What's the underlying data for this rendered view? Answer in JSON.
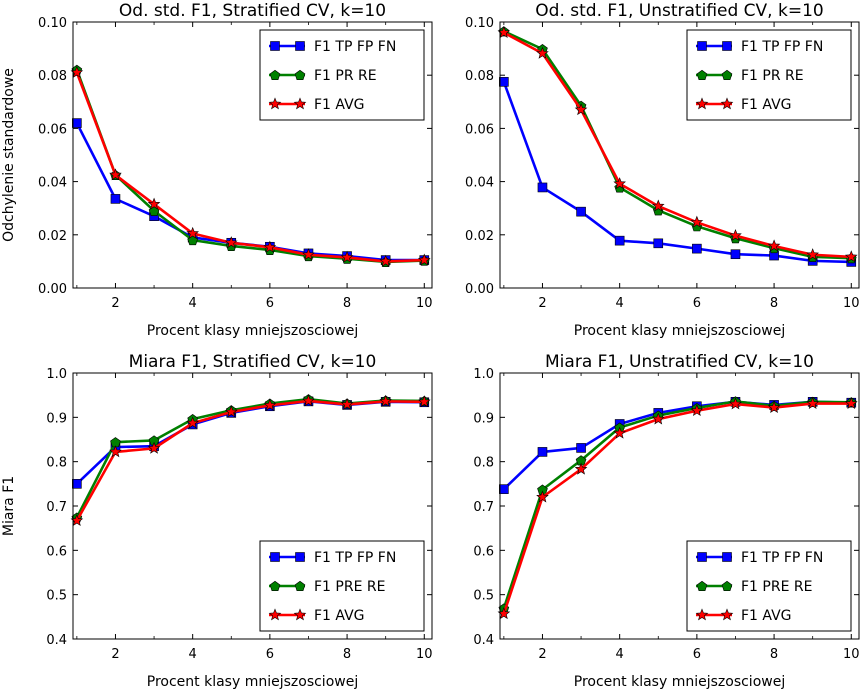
{
  "chart_data": [
    {
      "type": "line",
      "title": "Od. std. F1, Stratified CV, k=10",
      "xlabel": "Procent klasy mniejszosciowej",
      "ylabel": "Odchylenie standardowe",
      "xlim": [
        0.9,
        10.2
      ],
      "ylim": [
        0,
        0.1
      ],
      "xticks": [
        2,
        4,
        6,
        8,
        10
      ],
      "yticks": [
        0,
        0.02,
        0.04,
        0.06,
        0.08,
        0.1
      ],
      "ytick_labels": [
        "0.00",
        "0.02",
        "0.04",
        "0.06",
        "0.08",
        "0.10"
      ],
      "legend_position": "top-right",
      "x": [
        1,
        2,
        3,
        4,
        5,
        6,
        7,
        8,
        9,
        10
      ],
      "series": [
        {
          "name": "F1 TP FP FN",
          "color": "#0000ff",
          "marker": "square",
          "values": [
            0.062,
            0.0335,
            0.027,
            0.019,
            0.017,
            0.0155,
            0.013,
            0.012,
            0.0105,
            0.0105
          ]
        },
        {
          "name": "F1 PR RE",
          "color": "#008000",
          "marker": "pentagon",
          "values": [
            0.082,
            0.0425,
            0.029,
            0.018,
            0.0158,
            0.0143,
            0.012,
            0.011,
            0.0098,
            0.0103
          ]
        },
        {
          "name": "F1 AVG",
          "color": "#ff0000",
          "marker": "star",
          "values": [
            0.081,
            0.0425,
            0.0315,
            0.0205,
            0.017,
            0.0153,
            0.0125,
            0.0115,
            0.01,
            0.0105
          ]
        }
      ]
    },
    {
      "type": "line",
      "title": "Od. std. F1, Unstratified CV, k=10",
      "xlabel": "Procent klasy mniejszosciowej",
      "ylabel": "",
      "xlim": [
        0.9,
        10.2
      ],
      "ylim": [
        0,
        0.1
      ],
      "xticks": [
        2,
        4,
        6,
        8,
        10
      ],
      "yticks": [
        0,
        0.02,
        0.04,
        0.06,
        0.08,
        0.1
      ],
      "ytick_labels": [
        "0.00",
        "0.02",
        "0.04",
        "0.06",
        "0.08",
        "0.10"
      ],
      "legend_position": "top-right",
      "x": [
        1,
        2,
        3,
        4,
        5,
        6,
        7,
        8,
        9,
        10
      ],
      "series": [
        {
          "name": "F1 TP FP FN",
          "color": "#0000ff",
          "marker": "square",
          "values": [
            0.0775,
            0.0378,
            0.0287,
            0.0178,
            0.0168,
            0.0148,
            0.0127,
            0.0122,
            0.0102,
            0.0098
          ]
        },
        {
          "name": "F1 PR RE",
          "color": "#008000",
          "marker": "pentagon",
          "values": [
            0.0965,
            0.0898,
            0.0685,
            0.0378,
            0.0292,
            0.0232,
            0.0187,
            0.015,
            0.0117,
            0.0112
          ]
        },
        {
          "name": "F1 AVG",
          "color": "#ff0000",
          "marker": "star",
          "values": [
            0.096,
            0.0882,
            0.067,
            0.0392,
            0.0308,
            0.0247,
            0.0197,
            0.0158,
            0.0125,
            0.0117
          ]
        }
      ]
    },
    {
      "type": "line",
      "title": "Miara F1, Stratified CV, k=10",
      "xlabel": "Procent klasy mniejszosciowej",
      "ylabel": "Miara F1",
      "xlim": [
        0.9,
        10.2
      ],
      "ylim": [
        0.4,
        1.0
      ],
      "xticks": [
        2,
        4,
        6,
        8,
        10
      ],
      "yticks": [
        0.4,
        0.5,
        0.6,
        0.7,
        0.8,
        0.9,
        1.0
      ],
      "ytick_labels": [
        "0.4",
        "0.5",
        "0.6",
        "0.7",
        "0.8",
        "0.9",
        "1.0"
      ],
      "legend_position": "bottom-right",
      "x": [
        1,
        2,
        3,
        4,
        5,
        6,
        7,
        8,
        9,
        10
      ],
      "series": [
        {
          "name": "F1 TP FP FN",
          "color": "#0000ff",
          "marker": "square",
          "values": [
            0.75,
            0.833,
            0.835,
            0.884,
            0.91,
            0.925,
            0.936,
            0.928,
            0.935,
            0.934
          ]
        },
        {
          "name": "F1 PRE RE",
          "color": "#008000",
          "marker": "pentagon",
          "values": [
            0.674,
            0.844,
            0.848,
            0.896,
            0.916,
            0.931,
            0.941,
            0.931,
            0.938,
            0.937
          ]
        },
        {
          "name": "F1 AVG",
          "color": "#ff0000",
          "marker": "star",
          "values": [
            0.667,
            0.822,
            0.83,
            0.887,
            0.912,
            0.927,
            0.937,
            0.929,
            0.936,
            0.935
          ]
        }
      ]
    },
    {
      "type": "line",
      "title": "Miara F1, Unstratified CV, k=10",
      "xlabel": "Procent klasy mniejszosciowej",
      "ylabel": "",
      "xlim": [
        0.9,
        10.2
      ],
      "ylim": [
        0.4,
        1.0
      ],
      "xticks": [
        2,
        4,
        6,
        8,
        10
      ],
      "yticks": [
        0.4,
        0.5,
        0.6,
        0.7,
        0.8,
        0.9,
        1.0
      ],
      "ytick_labels": [
        "0.4",
        "0.5",
        "0.6",
        "0.7",
        "0.8",
        "0.9",
        "1.0"
      ],
      "legend_position": "bottom-right",
      "x": [
        1,
        2,
        3,
        4,
        5,
        6,
        7,
        8,
        9,
        10
      ],
      "series": [
        {
          "name": "F1 TP FP FN",
          "color": "#0000ff",
          "marker": "square",
          "values": [
            0.738,
            0.822,
            0.831,
            0.885,
            0.91,
            0.925,
            0.935,
            0.928,
            0.935,
            0.933
          ]
        },
        {
          "name": "F1 PRE RE",
          "color": "#008000",
          "marker": "pentagon",
          "values": [
            0.469,
            0.737,
            0.803,
            0.877,
            0.904,
            0.921,
            0.936,
            0.926,
            0.935,
            0.934
          ]
        },
        {
          "name": "F1 AVG",
          "color": "#ff0000",
          "marker": "star",
          "values": [
            0.457,
            0.72,
            0.783,
            0.864,
            0.896,
            0.915,
            0.93,
            0.922,
            0.931,
            0.931
          ]
        }
      ]
    }
  ]
}
